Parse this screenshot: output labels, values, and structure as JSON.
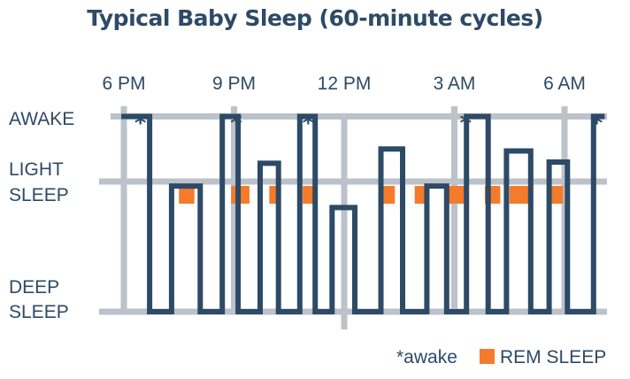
{
  "chart_data": {
    "type": "line",
    "title": "Typical Baby Sleep (60-minute cycles)",
    "x_ticks": [
      "6 PM",
      "9 PM",
      "12 PM",
      "3 AM",
      "6 AM"
    ],
    "x_tick_hours": [
      0,
      3,
      6,
      9,
      12
    ],
    "xlim": [
      0,
      12.9
    ],
    "y_levels": [
      {
        "key": "awake",
        "lines": [
          "AWAKE"
        ]
      },
      {
        "key": "light",
        "lines": [
          "LIGHT",
          "SLEEP"
        ]
      },
      {
        "key": "deep",
        "lines": [
          "DEEP",
          "SLEEP"
        ]
      }
    ],
    "y_values": {
      "awake": 3,
      "light": 2,
      "deep": 0
    },
    "sleep_stage_series": [
      [
        0,
        3
      ],
      [
        0.7,
        3
      ],
      [
        0.7,
        0
      ],
      [
        1.3,
        0
      ],
      [
        1.3,
        1.93
      ],
      [
        2.08,
        1.93
      ],
      [
        2.08,
        0
      ],
      [
        2.68,
        0
      ],
      [
        2.68,
        3
      ],
      [
        3.11,
        3
      ],
      [
        3.11,
        0
      ],
      [
        3.71,
        0
      ],
      [
        3.71,
        2.28
      ],
      [
        4.21,
        2.28
      ],
      [
        4.21,
        0
      ],
      [
        4.79,
        0
      ],
      [
        4.79,
        3
      ],
      [
        5.21,
        3
      ],
      [
        5.21,
        0
      ],
      [
        5.67,
        0
      ],
      [
        5.67,
        1.6
      ],
      [
        6.29,
        1.6
      ],
      [
        6.29,
        0
      ],
      [
        7.0,
        0
      ],
      [
        7.0,
        2.5
      ],
      [
        7.59,
        2.5
      ],
      [
        7.59,
        0
      ],
      [
        8.25,
        0
      ],
      [
        8.25,
        1.93
      ],
      [
        8.79,
        1.93
      ],
      [
        8.79,
        0
      ],
      [
        9.33,
        0
      ],
      [
        9.33,
        3
      ],
      [
        9.92,
        3
      ],
      [
        9.92,
        0
      ],
      [
        10.42,
        0
      ],
      [
        10.42,
        2.47
      ],
      [
        11.08,
        2.47
      ],
      [
        11.08,
        0
      ],
      [
        11.58,
        0
      ],
      [
        11.58,
        2.3
      ],
      [
        12.08,
        2.3
      ],
      [
        12.08,
        0
      ],
      [
        12.79,
        0
      ],
      [
        12.79,
        3
      ],
      [
        13.02,
        3
      ]
    ],
    "rem_sleep_segments": [
      [
        1.5,
        1.92
      ],
      [
        2.92,
        3.42
      ],
      [
        3.96,
        4.25
      ],
      [
        4.87,
        5.21
      ],
      [
        7.0,
        7.38
      ],
      [
        7.92,
        8.29
      ],
      [
        8.75,
        9.33
      ],
      [
        9.83,
        10.25
      ],
      [
        10.5,
        11.08
      ],
      [
        11.58,
        11.96
      ]
    ],
    "awake_markers": [
      0.45,
      3.06,
      5.02,
      9.31,
      12.88
    ],
    "legend": [
      {
        "symbol": "*",
        "label": "awake"
      },
      {
        "symbol": "square",
        "label": "REM SLEEP"
      }
    ],
    "colors": {
      "stage_line": "#2d4a66",
      "rem": "#f47b2a",
      "grid": "#bcc2c9",
      "text": "#2d4a66"
    },
    "grid": true
  }
}
